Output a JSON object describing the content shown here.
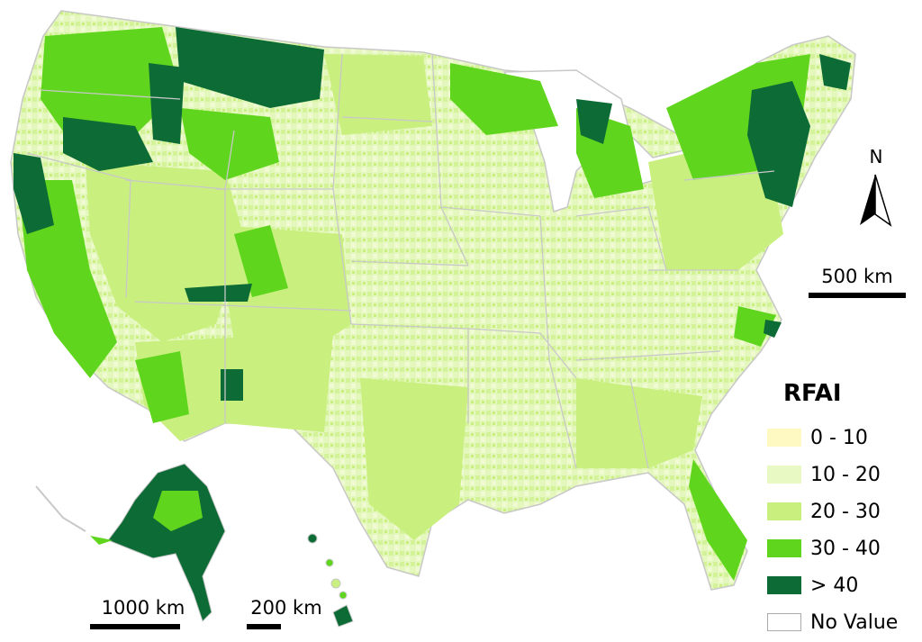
{
  "legend": {
    "title": "RFAI",
    "items": [
      {
        "label": "0 - 10",
        "color": "#fef9c3"
      },
      {
        "label": "10 - 20",
        "color": "#e9f9c4"
      },
      {
        "label": "20 - 30",
        "color": "#c9f07e"
      },
      {
        "label": "30 - 40",
        "color": "#5fd61d"
      },
      {
        "label": "> 40",
        "color": "#0d6b36"
      },
      {
        "label": "No Value",
        "color": "#ffffff"
      }
    ]
  },
  "scale_bars": {
    "contiguous": "500 km",
    "alaska": "1000 km",
    "hawaii": "200 km"
  },
  "north_arrow": {
    "letter": "N"
  },
  "colors": {
    "boundary": "#c8c8c8",
    "background": "#ffffff"
  }
}
